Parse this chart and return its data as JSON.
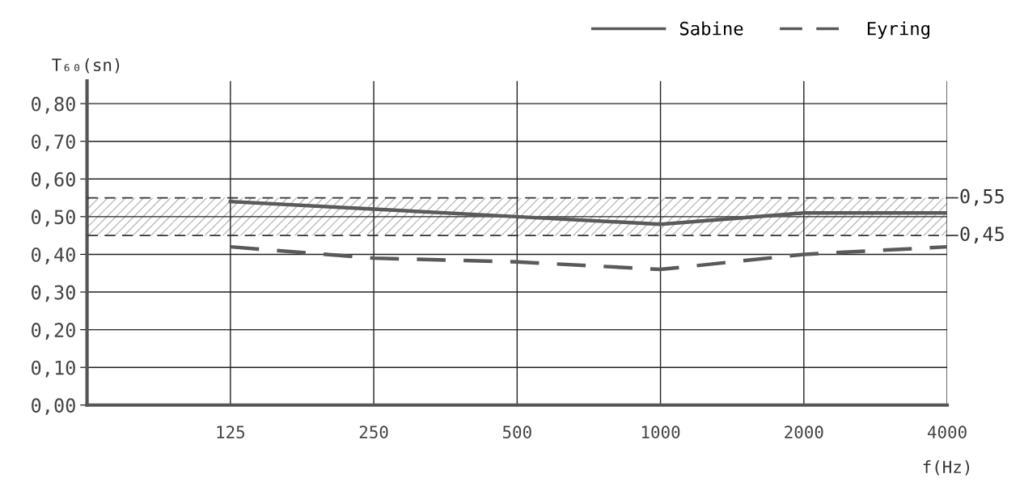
{
  "chart_data": {
    "type": "line",
    "ylabel": "T₆₀(sn)",
    "xlabel": "f(Hz)",
    "categories": [
      null,
      "125",
      "250",
      "500",
      "1000",
      "2000",
      "4000"
    ],
    "series": [
      {
        "name": "Sabine",
        "color": "#5a5a5a",
        "line_style": "solid",
        "values": [
          null,
          0.54,
          0.52,
          0.5,
          0.48,
          0.51,
          0.51
        ]
      },
      {
        "name": "Eyring",
        "color": "#5a5a5a",
        "line_style": "dashed",
        "values": [
          null,
          0.42,
          0.39,
          0.38,
          0.36,
          0.4,
          0.42
        ]
      }
    ],
    "ylim": [
      0,
      0.86
    ],
    "yticks": [
      {
        "value": 0,
        "label": "0,00"
      },
      {
        "value": 0.1,
        "label": "0,10"
      },
      {
        "value": 0.2,
        "label": "0,20"
      },
      {
        "value": 0.3,
        "label": "0,30"
      },
      {
        "value": 0.4,
        "label": "0,40"
      },
      {
        "value": 0.5,
        "label": "0,50"
      },
      {
        "value": 0.6,
        "label": "0,60"
      },
      {
        "value": 0.7,
        "label": "0,70"
      },
      {
        "value": 0.8,
        "label": "0,80"
      }
    ],
    "ref_lines": [
      {
        "axis": "y",
        "value": 0.55,
        "label": "0,55",
        "line_style": "dashed",
        "color": "#333333"
      },
      {
        "axis": "y",
        "value": 0.45,
        "label": "0,45",
        "line_style": "dashed",
        "color": "#333333"
      }
    ],
    "bands": [
      {
        "axis": "y",
        "from": 0.45,
        "to": 0.55,
        "color": "#bbbbbb"
      }
    ],
    "grid": true,
    "legend": "top right",
    "marker": "none"
  }
}
